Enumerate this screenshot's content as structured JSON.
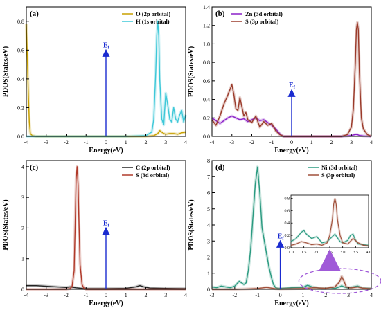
{
  "chart_data": [
    {
      "panel": "(a)",
      "type": "line",
      "xlabel": "Energy(eV)",
      "ylabel": "PDOS(States/eV)",
      "xlim": [
        -4,
        4
      ],
      "ylim": [
        0,
        0.9
      ],
      "xticks": [
        -4,
        -3,
        -2,
        -1,
        0,
        1,
        2,
        3,
        4
      ],
      "yticks": [
        0.0,
        0.2,
        0.4,
        0.6,
        0.8
      ],
      "legend_position": "top-right",
      "fermi_label": "E",
      "fermi_sub": "f",
      "fermi_top": 0.6,
      "series": [
        {
          "name": "O (2p orbital)",
          "color": "#c8a000",
          "x": [
            -4.0,
            -3.95,
            -3.9,
            -3.85,
            -3.8,
            -3.7,
            -3.5,
            -3.0,
            -2.0,
            -1.0,
            0.0,
            1.0,
            2.0,
            2.4,
            2.6,
            2.7,
            2.8,
            2.9,
            3.0,
            3.2,
            3.4,
            3.6,
            3.8,
            4.0
          ],
          "y": [
            0.78,
            0.55,
            0.3,
            0.1,
            0.02,
            0.005,
            0.0,
            0.0,
            0.0,
            0.0,
            0.0,
            0.0,
            0.0,
            0.005,
            0.02,
            0.04,
            0.03,
            0.02,
            0.015,
            0.02,
            0.02,
            0.015,
            0.025,
            0.03
          ]
        },
        {
          "name": "H (1s orbital)",
          "color": "#3ec8d8",
          "x": [
            -4.0,
            -3.5,
            -3.0,
            -2.0,
            -1.0,
            0.0,
            1.0,
            2.0,
            2.3,
            2.4,
            2.5,
            2.55,
            2.6,
            2.65,
            2.7,
            2.8,
            2.9,
            3.0,
            3.1,
            3.2,
            3.3,
            3.4,
            3.5,
            3.6,
            3.7,
            3.8,
            3.9,
            4.0
          ],
          "y": [
            0.0,
            0.0,
            0.0,
            0.0,
            0.0,
            0.0,
            0.0,
            0.005,
            0.03,
            0.12,
            0.45,
            0.7,
            0.8,
            0.7,
            0.4,
            0.12,
            0.08,
            0.3,
            0.22,
            0.12,
            0.1,
            0.2,
            0.12,
            0.1,
            0.15,
            0.18,
            0.1,
            0.15
          ]
        }
      ]
    },
    {
      "panel": "(b)",
      "type": "line",
      "xlabel": "Energy(eV)",
      "ylabel": "PDOS(States/eV)",
      "xlim": [
        -4,
        4
      ],
      "ylim": [
        0,
        1.4
      ],
      "xticks": [
        -4,
        -3,
        -2,
        -1,
        0,
        1,
        2,
        3,
        4
      ],
      "yticks": [
        0.0,
        0.2,
        0.4,
        0.6,
        0.8,
        1.0,
        1.2,
        1.4
      ],
      "legend_position": "top-left",
      "fermi_label": "E",
      "fermi_sub": "f",
      "fermi_top": 0.5,
      "series": [
        {
          "name": "Zn (3d orbital)",
          "color": "#8b20c8",
          "x": [
            -4.0,
            -3.8,
            -3.6,
            -3.4,
            -3.2,
            -3.0,
            -2.8,
            -2.6,
            -2.4,
            -2.2,
            -2.0,
            -1.8,
            -1.6,
            -1.4,
            -1.2,
            -1.0,
            -0.8,
            -0.6,
            -0.5,
            -0.4,
            0.0,
            1.0,
            2.0,
            2.5,
            2.8,
            3.0,
            3.2,
            3.3,
            3.4,
            3.6,
            4.0
          ],
          "y": [
            0.2,
            0.17,
            0.14,
            0.17,
            0.2,
            0.22,
            0.2,
            0.18,
            0.19,
            0.16,
            0.18,
            0.2,
            0.17,
            0.18,
            0.15,
            0.12,
            0.08,
            0.03,
            0.01,
            0.0,
            0.0,
            0.0,
            0.0,
            0.0,
            0.005,
            0.01,
            0.02,
            0.02,
            0.01,
            0.005,
            0.0
          ]
        },
        {
          "name": "S (3p orbital)",
          "color": "#9a3a2a",
          "x": [
            -4.0,
            -3.8,
            -3.6,
            -3.4,
            -3.2,
            -3.0,
            -2.9,
            -2.8,
            -2.7,
            -2.6,
            -2.5,
            -2.4,
            -2.3,
            -2.2,
            -2.0,
            -1.8,
            -1.6,
            -1.4,
            -1.2,
            -1.0,
            -0.8,
            -0.6,
            -0.5,
            -0.4,
            0.0,
            1.0,
            2.0,
            2.5,
            2.8,
            3.0,
            3.1,
            3.2,
            3.25,
            3.3,
            3.35,
            3.4,
            3.5,
            3.6,
            3.8,
            4.0
          ],
          "y": [
            0.18,
            0.12,
            0.22,
            0.35,
            0.45,
            0.56,
            0.45,
            0.3,
            0.28,
            0.42,
            0.32,
            0.22,
            0.26,
            0.18,
            0.15,
            0.22,
            0.1,
            0.16,
            0.12,
            0.14,
            0.06,
            0.02,
            0.01,
            0.0,
            0.0,
            0.0,
            0.0,
            0.0,
            0.02,
            0.1,
            0.3,
            0.8,
            1.15,
            1.23,
            1.15,
            0.7,
            0.2,
            0.08,
            0.02,
            0.0
          ]
        }
      ]
    },
    {
      "panel": "(c)",
      "type": "line",
      "xlabel": "Energy(eV)",
      "ylabel": "PDOS(States/eV)",
      "xlim": [
        -4,
        4
      ],
      "ylim": [
        0,
        4.2
      ],
      "xticks": [
        -4,
        -3,
        -2,
        -1,
        0,
        1,
        2,
        3,
        4
      ],
      "yticks": [
        0,
        1,
        2,
        3,
        4
      ],
      "legend_position": "top-right",
      "fermi_label": "E",
      "fermi_sub": "f",
      "fermi_top": 2.0,
      "series": [
        {
          "name": "C (2p orbital)",
          "color": "#222222",
          "x": [
            -4.0,
            -3.5,
            -3.0,
            -2.5,
            -2.0,
            -1.8,
            -1.5,
            -1.2,
            -1.0,
            0.0,
            1.0,
            1.5,
            1.7,
            1.9,
            2.2,
            3.0,
            4.0
          ],
          "y": [
            0.12,
            0.12,
            0.1,
            0.08,
            0.06,
            0.08,
            0.05,
            0.03,
            0.02,
            0.02,
            0.03,
            0.08,
            0.12,
            0.08,
            0.04,
            0.03,
            0.02
          ]
        },
        {
          "name": "S (3d orbital)",
          "color": "#b03a2a",
          "x": [
            -4.0,
            -2.0,
            -1.8,
            -1.7,
            -1.6,
            -1.55,
            -1.5,
            -1.45,
            -1.4,
            -1.35,
            -1.3,
            -1.2,
            -1.1,
            -1.0,
            0.0,
            4.0
          ],
          "y": [
            0.0,
            0.0,
            0.02,
            0.1,
            0.6,
            2.0,
            3.6,
            4.0,
            3.4,
            2.0,
            0.8,
            0.15,
            0.03,
            0.0,
            0.0,
            0.0
          ]
        }
      ]
    },
    {
      "panel": "(d)",
      "type": "line",
      "xlabel": "Energy(eV)",
      "ylabel": "PDOS(States/eV)",
      "xlim": [
        -3,
        4
      ],
      "ylim": [
        0,
        8
      ],
      "xticks": [
        -3,
        -2,
        -1,
        0,
        1,
        2,
        3,
        4
      ],
      "yticks": [
        0,
        1,
        2,
        3,
        4,
        5,
        6,
        7,
        8
      ],
      "legend_position": "top-right",
      "fermi_label": "E",
      "fermi_sub": "f",
      "fermi_top": 3.0,
      "series": [
        {
          "name": "Ni (3d orbital)",
          "color": "#2a9a80",
          "x": [
            -3.0,
            -2.8,
            -2.6,
            -2.4,
            -2.2,
            -2.0,
            -1.8,
            -1.6,
            -1.5,
            -1.4,
            -1.3,
            -1.2,
            -1.1,
            -1.0,
            -0.9,
            -0.8,
            -0.7,
            -0.6,
            -0.5,
            -0.4,
            -0.3,
            -0.2,
            -0.1,
            0.0,
            0.5,
            1.0,
            1.2,
            1.4,
            1.6,
            1.8,
            2.0,
            2.2,
            2.4,
            2.6,
            2.7,
            2.8,
            3.0,
            3.2,
            3.4,
            3.6,
            4.0
          ],
          "y": [
            0.15,
            0.1,
            0.2,
            0.15,
            0.1,
            0.2,
            0.5,
            0.3,
            0.4,
            1.2,
            2.5,
            4.5,
            6.5,
            7.6,
            6.0,
            3.8,
            3.0,
            2.2,
            1.4,
            0.8,
            0.3,
            0.1,
            0.05,
            0.05,
            0.1,
            0.12,
            0.25,
            0.15,
            0.1,
            0.05,
            0.05,
            0.1,
            0.05,
            0.15,
            0.22,
            0.15,
            0.08,
            0.15,
            0.2,
            0.08,
            0.05
          ]
        },
        {
          "name": "S (3p orbital)",
          "color": "#a0503a",
          "x": [
            -3.0,
            -2.0,
            -1.5,
            -1.0,
            -0.6,
            -0.4,
            -0.2,
            0.0,
            1.0,
            1.5,
            2.0,
            2.4,
            2.6,
            2.7,
            2.8,
            2.9,
            3.1,
            3.4,
            3.6,
            4.0
          ],
          "y": [
            0.0,
            0.0,
            0.02,
            0.05,
            0.12,
            0.08,
            0.03,
            0.02,
            0.05,
            0.1,
            0.06,
            0.15,
            0.45,
            0.8,
            0.5,
            0.15,
            0.08,
            0.15,
            0.08,
            0.03
          ]
        }
      ],
      "inset": {
        "xlim": [
          1.0,
          4.0
        ],
        "ylim": [
          0,
          0.85
        ],
        "xticks": [
          1.0,
          1.5,
          2.0,
          2.5,
          3.0,
          3.5,
          4.0
        ],
        "yticks": [
          0.0,
          0.2,
          0.4,
          0.6,
          0.8
        ],
        "series": [
          {
            "name": "Ni (3d orbital)",
            "color": "#2a9a80",
            "x": [
              1.0,
              1.2,
              1.4,
              1.5,
              1.6,
              1.8,
              2.0,
              2.2,
              2.4,
              2.6,
              2.7,
              2.8,
              2.9,
              3.0,
              3.2,
              3.3,
              3.4,
              3.5,
              3.6,
              3.8,
              4.0
            ],
            "y": [
              0.1,
              0.15,
              0.25,
              0.28,
              0.22,
              0.15,
              0.18,
              0.08,
              0.1,
              0.18,
              0.22,
              0.16,
              0.1,
              0.08,
              0.12,
              0.2,
              0.22,
              0.12,
              0.06,
              0.05,
              0.04
            ]
          },
          {
            "name": "S (3p orbital)",
            "color": "#a0503a",
            "x": [
              1.0,
              1.2,
              1.4,
              1.6,
              1.8,
              2.0,
              2.2,
              2.4,
              2.5,
              2.6,
              2.65,
              2.7,
              2.75,
              2.8,
              2.9,
              3.0,
              3.2,
              3.4,
              3.6,
              3.8,
              4.0
            ],
            "y": [
              0.04,
              0.06,
              0.1,
              0.08,
              0.05,
              0.06,
              0.04,
              0.08,
              0.2,
              0.45,
              0.7,
              0.8,
              0.7,
              0.45,
              0.2,
              0.08,
              0.06,
              0.15,
              0.08,
              0.04,
              0.03
            ]
          }
        ]
      }
    }
  ]
}
